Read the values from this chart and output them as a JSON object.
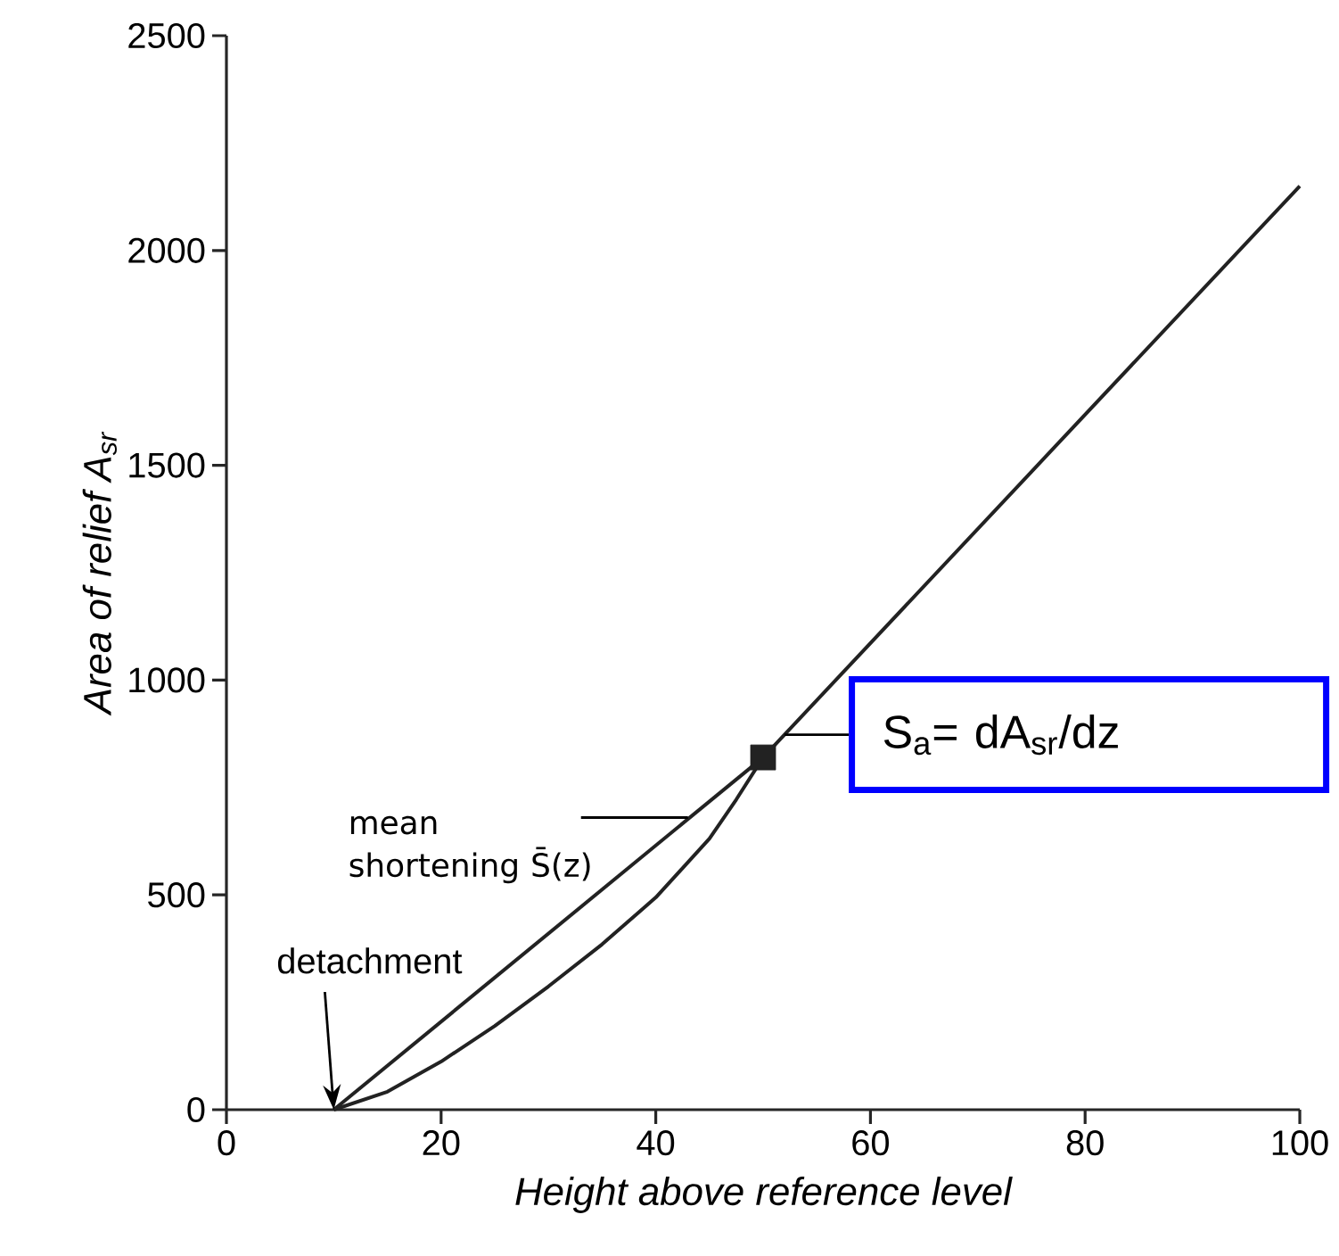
{
  "chart_data": {
    "type": "line",
    "xlabel": "Height above reference level",
    "ylabel": "Area of relief A$_{sr}$",
    "xlim": [
      0,
      100
    ],
    "xticks": [
      0,
      20,
      40,
      60,
      80,
      100
    ],
    "ylim": [
      0,
      2500
    ],
    "yticks": [
      0,
      500,
      1000,
      1500,
      2000,
      2500
    ],
    "grid": false,
    "series": [
      {
        "color": "#222222",
        "x": [
          10,
          15,
          20,
          25,
          30,
          35,
          40,
          45,
          47.5,
          50,
          75,
          100
        ],
        "values": [
          0,
          42,
          112,
          195,
          287,
          385,
          494,
          631,
          722,
          820,
          1485,
          2150
        ]
      },
      {
        "color": "#222222",
        "x": [
          10,
          50
        ],
        "values": [
          0,
          820
        ]
      },
      {
        "type": "scatter",
        "marker": "square",
        "color": "#222222",
        "x": [
          50
        ],
        "values": [
          820
        ]
      }
    ],
    "annotations": [
      {
        "text": "detachment",
        "x": 10,
        "y": 0
      },
      {
        "text": "mean shortening S̄(z)",
        "x": 43,
        "y": 680
      },
      {
        "text": "S$_{a}$= dA$_{sr}$/dz",
        "x": 52,
        "y": 873
      }
    ]
  }
}
